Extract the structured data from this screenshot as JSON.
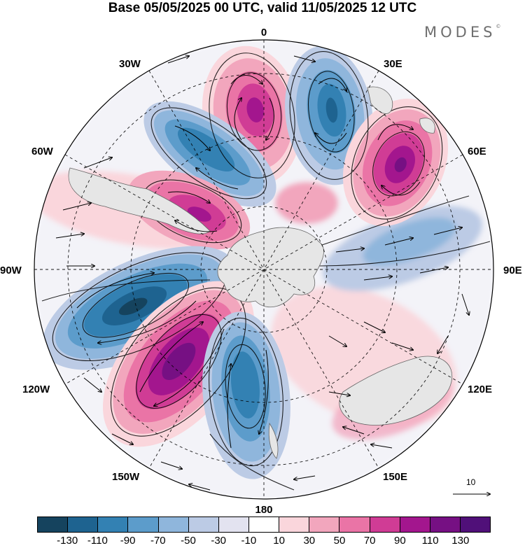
{
  "title": "Base 05/05/2025 00 UTC, valid 11/05/2025 12 UTC",
  "brand": "MODES",
  "brand_mark": "©",
  "longitude_labels": {
    "lon_0": "0",
    "lon_30e": "30E",
    "lon_60e": "60E",
    "lon_90e": "90E",
    "lon_120e": "120E",
    "lon_150e": "150E",
    "lon_180": "180",
    "lon_150w": "150W",
    "lon_120w": "120W",
    "lon_90w": "90W",
    "lon_60w": "60W",
    "lon_30w": "30W"
  },
  "reference_vector": "10",
  "colorbar": {
    "colors": [
      "#15435e",
      "#1e6390",
      "#3381b3",
      "#5c9ccb",
      "#8fb6dc",
      "#bccbe5",
      "#e3e3f0",
      "#ffffff",
      "#fad6dc",
      "#f2a6bd",
      "#ea74a6",
      "#d03c95",
      "#a3168e",
      "#761083",
      "#501079"
    ],
    "ticks": [
      "-130",
      "-110",
      "-90",
      "-70",
      "-50",
      "-30",
      "-10",
      "10",
      "30",
      "50",
      "70",
      "90",
      "110",
      "130"
    ]
  },
  "anomaly_centers": [
    {
      "lon": -5,
      "value": 90
    },
    {
      "lon": 15,
      "value": -90
    },
    {
      "lon": 45,
      "value": 110
    },
    {
      "lon": -35,
      "value": -90
    },
    {
      "lon": -65,
      "value": 90
    },
    {
      "lon": 80,
      "value": -30
    },
    {
      "lon": -110,
      "value": -110
    },
    {
      "lon": -145,
      "value": 130
    },
    {
      "lon": 175,
      "value": -70
    },
    {
      "lon": 130,
      "value": 30
    }
  ]
}
